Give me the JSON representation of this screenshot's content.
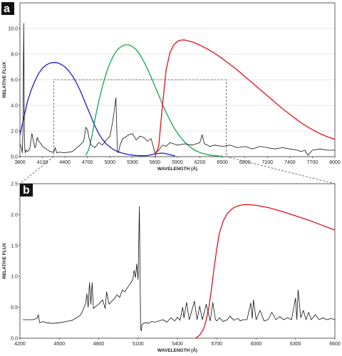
{
  "colors": {
    "spectrum": "#111111",
    "blue": "#1a1ad0",
    "green": "#10a84a",
    "red": "#e0101a",
    "grid": "#cfcfcf",
    "dash": "#555555",
    "letter_bg": "#111111"
  },
  "chart_data": [
    {
      "panel": "a",
      "type": "line",
      "xlabel": "WAVELENGTH (Å)",
      "ylabel": "RELATIVE FLUX",
      "xlim": [
        3800,
        8000
      ],
      "ylim": [
        0,
        12
      ],
      "xticks": [
        3800,
        4100,
        4400,
        4700,
        5000,
        5300,
        5600,
        5900,
        6200,
        6500,
        6800,
        7100,
        7400,
        7700,
        8000
      ],
      "yticks": [
        0.0,
        2.0,
        4.0,
        6.0,
        8.0,
        10.0
      ],
      "ytick_labels": [
        "0.0",
        "2.0",
        "4.0",
        "6.0",
        "8.0",
        "10.0"
      ],
      "grid": "horizontal",
      "inset_box": {
        "x": [
          4250,
          6550
        ],
        "y": [
          0,
          6.0
        ]
      },
      "series": [
        {
          "color": "blue",
          "x": [
            3800,
            3850,
            3900,
            3950,
            4000,
            4050,
            4100,
            4150,
            4200,
            4250,
            4300,
            4350,
            4400,
            4450,
            4500,
            4550,
            4600,
            4650,
            4700,
            4750,
            4800,
            4850,
            4900,
            4950,
            5000,
            5050,
            5100,
            5150,
            5200,
            5250,
            5300,
            5350,
            5400,
            5500,
            5600,
            5700,
            5800,
            5870
          ],
          "y": [
            1.7,
            3.0,
            4.3,
            5.2,
            5.9,
            6.5,
            6.9,
            7.15,
            7.3,
            7.35,
            7.32,
            7.2,
            7.0,
            6.7,
            6.3,
            5.8,
            5.2,
            4.5,
            3.8,
            3.1,
            2.4,
            1.8,
            1.35,
            1.0,
            0.75,
            0.55,
            0.4,
            0.3,
            0.22,
            0.16,
            0.12,
            0.09,
            0.07,
            0.08,
            0.22,
            0.28,
            0.15,
            0.05
          ]
        },
        {
          "color": "green",
          "x": [
            4680,
            4720,
            4760,
            4800,
            4850,
            4900,
            4950,
            5000,
            5050,
            5100,
            5150,
            5200,
            5250,
            5300,
            5350,
            5400,
            5450,
            5500,
            5550,
            5600,
            5650,
            5700,
            5750,
            5800,
            5850,
            5900,
            5950,
            6000,
            6050,
            6100,
            6150,
            6200,
            6300,
            6400,
            6500
          ],
          "y": [
            0.1,
            0.6,
            1.6,
            2.9,
            4.3,
            5.5,
            6.5,
            7.3,
            7.9,
            8.35,
            8.6,
            8.72,
            8.72,
            8.6,
            8.35,
            7.95,
            7.45,
            6.85,
            6.2,
            5.5,
            4.8,
            4.1,
            3.45,
            2.85,
            2.3,
            1.85,
            1.45,
            1.12,
            0.85,
            0.62,
            0.45,
            0.32,
            0.15,
            0.07,
            0.03
          ]
        },
        {
          "color": "red",
          "x": [
            5600,
            5650,
            5700,
            5750,
            5800,
            5850,
            5900,
            5950,
            6000,
            6100,
            6200,
            6300,
            6400,
            6500,
            6600,
            6700,
            6800,
            6900,
            7000,
            7100,
            7200,
            7300,
            7400,
            7500,
            7600,
            7700,
            7800,
            7900,
            8000
          ],
          "y": [
            0.0,
            0.8,
            4.0,
            6.8,
            8.1,
            8.7,
            9.0,
            9.1,
            9.1,
            8.95,
            8.7,
            8.4,
            8.05,
            7.65,
            7.2,
            6.75,
            6.25,
            5.75,
            5.25,
            4.75,
            4.25,
            3.75,
            3.3,
            2.85,
            2.45,
            2.1,
            1.8,
            1.55,
            1.35
          ]
        },
        {
          "color": "spectrum",
          "x": [
            3800,
            3820,
            3830,
            3840,
            3850,
            3860,
            3870,
            3880,
            3900,
            3930,
            3960,
            3980,
            4000,
            4010,
            4030,
            4050,
            4080,
            4100,
            4150,
            4200,
            4250,
            4270,
            4290,
            4320,
            4400,
            4500,
            4600,
            4650,
            4680,
            4700,
            4720,
            4750,
            4800,
            4850,
            4900,
            4950,
            5000,
            5030,
            5050,
            5080,
            5100,
            5110,
            5120,
            5140,
            5150,
            5170,
            5200,
            5250,
            5300,
            5350,
            5400,
            5450,
            5500,
            5550,
            5600,
            5650,
            5700,
            5750,
            5800,
            5850,
            5900,
            6000,
            6100,
            6200,
            6230,
            6260,
            6300,
            6330,
            6400,
            6500,
            6600,
            6700,
            6800,
            6900,
            7000,
            7100,
            7200,
            7300,
            7400,
            7500,
            7550,
            7600,
            7640,
            7700,
            7800,
            7900,
            8000
          ],
          "y": [
            1.0,
            0.7,
            0.3,
            2.0,
            10.4,
            1.0,
            0.3,
            0.5,
            0.4,
            0.6,
            1.8,
            1.2,
            0.7,
            0.8,
            1.5,
            1.2,
            1.0,
            0.8,
            0.6,
            0.4,
            0.35,
            0.7,
            0.3,
            0.35,
            0.3,
            0.4,
            0.9,
            1.2,
            2.3,
            2.1,
            1.5,
            0.9,
            0.7,
            1.1,
            0.9,
            1.3,
            1.6,
            2.5,
            3.2,
            4.6,
            0.4,
            0.3,
            0.5,
            1.0,
            1.1,
            1.4,
            1.5,
            1.7,
            1.8,
            1.3,
            1.6,
            1.5,
            1.2,
            1.4,
            0.3,
            0.5,
            0.9,
            0.8,
            1.1,
            1.0,
            0.9,
            1.0,
            0.9,
            1.1,
            1.7,
            1.0,
            0.9,
            0.8,
            0.9,
            0.8,
            0.9,
            0.7,
            0.8,
            0.6,
            0.8,
            0.7,
            0.6,
            0.7,
            0.6,
            0.5,
            0.4,
            0.5,
            0.1,
            0.5,
            0.6,
            0.5,
            0.5
          ]
        }
      ]
    },
    {
      "panel": "b",
      "type": "line",
      "xlabel": "WAVELENGTH (Å)",
      "ylabel": "RELATIVE FLUX",
      "xlim": [
        4200,
        6600
      ],
      "ylim": [
        0,
        2.5
      ],
      "xticks": [
        4200,
        4500,
        4800,
        5100,
        5400,
        5700,
        6000,
        6300,
        6600
      ],
      "yticks": [
        0.0,
        0.5,
        1.0,
        1.5,
        2.0,
        2.5
      ],
      "ytick_labels": [
        "0.0",
        "0.5",
        "1.0",
        "1.5",
        "2.0",
        "2.5"
      ],
      "grid": "none",
      "series": [
        {
          "color": "red",
          "x": [
            5540,
            5570,
            5600,
            5620,
            5640,
            5660,
            5680,
            5700,
            5720,
            5750,
            5780,
            5820,
            5860,
            5900,
            5950,
            6000,
            6100,
            6200,
            6300,
            6400,
            6500,
            6600
          ],
          "y": [
            0.0,
            0.05,
            0.15,
            0.3,
            0.5,
            0.8,
            1.15,
            1.45,
            1.7,
            1.9,
            2.02,
            2.1,
            2.14,
            2.16,
            2.16,
            2.15,
            2.11,
            2.05,
            1.98,
            1.91,
            1.83,
            1.75
          ]
        },
        {
          "color": "spectrum",
          "x": [
            4220,
            4260,
            4300,
            4330,
            4340,
            4350,
            4360,
            4380,
            4400,
            4450,
            4500,
            4550,
            4600,
            4630,
            4660,
            4680,
            4700,
            4710,
            4720,
            4730,
            4740,
            4750,
            4760,
            4780,
            4800,
            4830,
            4850,
            4860,
            4880,
            4900,
            4920,
            4940,
            4960,
            4980,
            5000,
            5020,
            5040,
            5060,
            5070,
            5080,
            5090,
            5100,
            5110,
            5120,
            5125,
            5130,
            5140,
            5160,
            5180,
            5200,
            5230,
            5260,
            5290,
            5320,
            5350,
            5380,
            5400,
            5420,
            5440,
            5450,
            5470,
            5490,
            5510,
            5530,
            5550,
            5570,
            5590,
            5620,
            5650,
            5670,
            5690,
            5700,
            5720,
            5750,
            5780,
            5800,
            5830,
            5860,
            5880,
            5900,
            5930,
            5960,
            5970,
            5980,
            6000,
            6030,
            6060,
            6090,
            6120,
            6150,
            6180,
            6210,
            6240,
            6270,
            6300,
            6310,
            6320,
            6340,
            6360,
            6380,
            6400,
            6420,
            6450,
            6480,
            6510,
            6540,
            6570,
            6600
          ],
          "y": [
            0.3,
            0.3,
            0.3,
            0.32,
            0.38,
            0.25,
            0.26,
            0.27,
            0.25,
            0.24,
            0.25,
            0.27,
            0.29,
            0.33,
            0.37,
            0.45,
            0.56,
            0.72,
            0.5,
            0.9,
            0.55,
            0.9,
            0.48,
            0.52,
            0.55,
            0.62,
            0.48,
            0.75,
            0.55,
            0.6,
            0.64,
            0.7,
            0.66,
            0.78,
            0.75,
            0.82,
            0.88,
            0.95,
            1.1,
            0.98,
            1.2,
            0.95,
            2.13,
            0.15,
            0.12,
            0.22,
            0.24,
            0.25,
            0.24,
            0.27,
            0.26,
            0.28,
            0.3,
            0.26,
            0.33,
            0.28,
            0.34,
            0.29,
            0.5,
            0.33,
            0.58,
            0.3,
            0.45,
            0.6,
            0.3,
            0.52,
            0.3,
            0.55,
            0.28,
            0.58,
            0.3,
            0.28,
            0.33,
            0.27,
            0.3,
            0.36,
            0.29,
            0.32,
            0.28,
            0.3,
            0.3,
            0.57,
            0.32,
            0.62,
            0.3,
            0.45,
            0.28,
            0.3,
            0.42,
            0.3,
            0.35,
            0.3,
            0.33,
            0.3,
            0.65,
            0.3,
            0.78,
            0.33,
            0.45,
            0.3,
            0.42,
            0.3,
            0.38,
            0.3,
            0.33,
            0.3,
            0.32,
            0.3
          ]
        }
      ]
    }
  ]
}
